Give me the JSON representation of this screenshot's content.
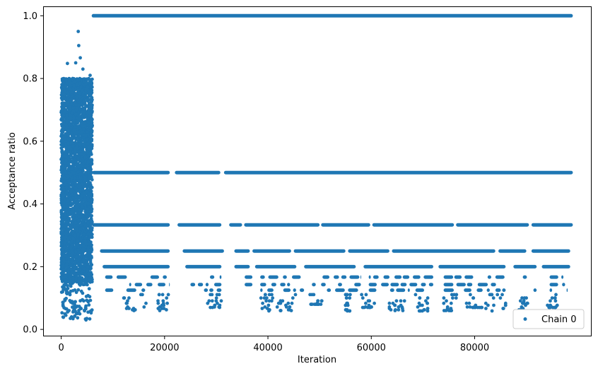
{
  "chart_data": {
    "type": "scatter",
    "title": "",
    "xlabel": "Iteration",
    "ylabel": "Acceptance ratio",
    "xlim": [
      -3500,
      102500
    ],
    "ylim": [
      -0.02,
      1.03
    ],
    "x_ticks": [
      0,
      20000,
      40000,
      60000,
      80000
    ],
    "x_tick_labels": [
      "0",
      "20000",
      "40000",
      "60000",
      "80000"
    ],
    "y_ticks": [
      0.0,
      0.2,
      0.4,
      0.6,
      0.8,
      1.0
    ],
    "y_tick_labels": [
      "0.0",
      "0.2",
      "0.4",
      "0.6",
      "0.8",
      "1.0"
    ],
    "grid": false,
    "legend_position": "lower-right",
    "color": "#1f77b4",
    "series": [
      {
        "name": "Chain 0",
        "x_range": [
          0,
          99000
        ],
        "burn_in": {
          "x_range": [
            0,
            6000
          ],
          "y_range": [
            0.03,
            0.95
          ],
          "dense_band": [
            0.15,
            0.8
          ],
          "outliers": [
            [
              3300,
              0.95
            ],
            [
              3400,
              0.905
            ],
            [
              3700,
              0.866
            ],
            [
              2800,
              0.85
            ],
            [
              1200,
              0.848
            ],
            [
              4200,
              0.83
            ],
            [
              500,
              0.8
            ],
            [
              5600,
              0.81
            ],
            [
              200,
              0.75
            ],
            [
              1500,
              0.06
            ],
            [
              900,
              0.045
            ],
            [
              4800,
              0.03
            ],
            [
              3000,
              0.05
            ],
            [
              5200,
              0.055
            ],
            [
              2000,
              0.04
            ]
          ]
        },
        "levels": [
          {
            "y": 1.0,
            "x_range": [
              5900,
              99000
            ],
            "gaps": []
          },
          {
            "y": 0.5,
            "x_range": [
              6000,
              99000
            ],
            "gaps": [
              [
                21000,
                22000
              ],
              [
                30800,
                31500
              ]
            ]
          },
          {
            "y": 0.3333,
            "x_range": [
              6000,
              99000
            ],
            "gaps": [
              [
                21000,
                22500
              ],
              [
                31000,
                32500
              ],
              [
                35000,
                35400
              ],
              [
                50000,
                50300
              ],
              [
                59800,
                60200
              ],
              [
                76000,
                76400
              ],
              [
                90500,
                91000
              ]
            ]
          },
          {
            "y": 0.25,
            "x_range": [
              7500,
              98500
            ],
            "gaps": [
              [
                21000,
                23500
              ],
              [
                31500,
                33500
              ],
              [
                36500,
                37000
              ],
              [
                44500,
                45000
              ],
              [
                55000,
                55500
              ],
              [
                63500,
                64000
              ],
              [
                84000,
                84600
              ],
              [
                90000,
                91000
              ]
            ]
          },
          {
            "y": 0.2,
            "x_range": [
              8000,
              98500
            ],
            "gaps": [
              [
                21000,
                24000
              ],
              [
                31000,
                33500
              ],
              [
                36500,
                37500
              ],
              [
                45500,
                47000
              ],
              [
                57000,
                58500
              ],
              [
                72000,
                73000
              ],
              [
                86000,
                87500
              ],
              [
                92000,
                93000
              ]
            ]
          },
          {
            "y": 0.1667,
            "x_range": [
              8500,
              97500
            ],
            "gaps": [
              [
                21000,
                25000
              ],
              [
                31000,
                35500
              ],
              [
                37000,
                38500
              ],
              [
                47000,
                48500
              ],
              [
                58000,
                59500
              ],
              [
                72000,
                74000
              ],
              [
                86000,
                88500
              ],
              [
                92000,
                94500
              ]
            ]
          },
          {
            "y": 0.1429,
            "x_range": [
              8500,
              97500
            ],
            "gaps": [
              [
                21000,
                25000
              ],
              [
                31000,
                35500
              ],
              [
                37000,
                38500
              ],
              [
                47000,
                48500
              ],
              [
                58000,
                59500
              ],
              [
                72000,
                74000
              ],
              [
                86000,
                88500
              ],
              [
                92000,
                94500
              ]
            ]
          },
          {
            "y": 0.125,
            "x_range": [
              8500,
              98000
            ],
            "gaps": [
              [
                21000,
                25000
              ],
              [
                31000,
                35500
              ],
              [
                37000,
                38500
              ],
              [
                47000,
                48500
              ],
              [
                58000,
                59500
              ],
              [
                72000,
                74000
              ],
              [
                86000,
                88500
              ],
              [
                92000,
                94500
              ]
            ]
          }
        ],
        "sparse_clusters": [
          {
            "x_range": [
              12000,
              16500
            ],
            "y_range": [
              0.06,
              0.125
            ]
          },
          {
            "x_range": [
              18500,
              21000
            ],
            "y_range": [
              0.06,
              0.125
            ]
          },
          {
            "x_range": [
              28000,
              31000
            ],
            "y_range": [
              0.07,
              0.125
            ]
          },
          {
            "x_range": [
              38500,
              41000
            ],
            "y_range": [
              0.055,
              0.125
            ]
          },
          {
            "x_range": [
              41500,
              45500
            ],
            "y_range": [
              0.06,
              0.125
            ]
          },
          {
            "x_range": [
              48000,
              50500
            ],
            "y_range": [
              0.08,
              0.125
            ]
          },
          {
            "x_range": [
              55000,
              56000
            ],
            "y_range": [
              0.055,
              0.125
            ]
          },
          {
            "x_range": [
              58000,
              61000
            ],
            "y_range": [
              0.07,
              0.125
            ]
          },
          {
            "x_range": [
              63500,
              66500
            ],
            "y_range": [
              0.06,
              0.125
            ]
          },
          {
            "x_range": [
              68500,
              71000
            ],
            "y_range": [
              0.055,
              0.125
            ]
          },
          {
            "x_range": [
              74000,
              76500
            ],
            "y_range": [
              0.06,
              0.125
            ]
          },
          {
            "x_range": [
              78000,
              81500
            ],
            "y_range": [
              0.07,
              0.125
            ]
          },
          {
            "x_range": [
              82000,
              86000
            ],
            "y_range": [
              0.055,
              0.125
            ]
          },
          {
            "x_range": [
              88500,
              90500
            ],
            "y_range": [
              0.06,
              0.125
            ]
          },
          {
            "x_range": [
              94000,
              96000
            ],
            "y_range": [
              0.07,
              0.125
            ]
          }
        ]
      }
    ]
  }
}
